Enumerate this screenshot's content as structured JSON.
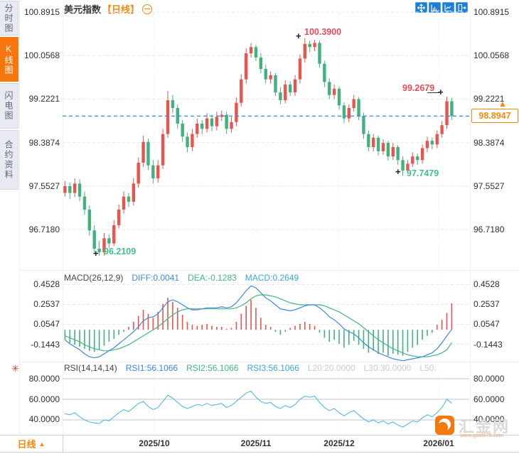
{
  "sidebar": {
    "tabs": [
      {
        "label": "分时图",
        "active": false
      },
      {
        "label": "K线图",
        "active": true
      },
      {
        "label": "闪电图",
        "active": false
      },
      {
        "label": "合约资料",
        "active": false
      }
    ]
  },
  "title": {
    "symbol": "美元指数",
    "period": "【日线】"
  },
  "toolbar": {
    "buttons": [
      "pan-icon",
      "axis-scale-icon",
      "axis-trend-icon",
      "exit-icon"
    ]
  },
  "price_axis": {
    "labels": [
      "100.8915",
      "100.0568",
      "99.2221",
      "98.3874",
      "97.5527",
      "96.7180"
    ],
    "values": [
      100.8915,
      100.0568,
      99.2221,
      98.3874,
      97.5527,
      96.718
    ]
  },
  "current_price": {
    "value": "98.8947",
    "arrow": "▲"
  },
  "annotations": {
    "high": "100.3900",
    "swing_high": "99.2679",
    "low": "96.2109",
    "swing_low": "97.7479",
    "marker": "+"
  },
  "macd": {
    "name": "MACD(26,12,9)",
    "diff": "DIFF:0.0041",
    "dea": "DEA:-0.1283",
    "macd": "MACD:0.2649",
    "axis_labels": [
      "0.4528",
      "0.2537",
      "0.0547",
      "-0.1443"
    ]
  },
  "rsi": {
    "name": "RSI(14,14,14)",
    "rsi1": "RSI1:56.1066",
    "rsi2": "RSI2:56.1066",
    "rsi3": "RSI3:56.1066",
    "l20": "L20:20.0000",
    "l30": "L30:30.0000",
    "l50": "L50:",
    "axis_labels": [
      "80.0000",
      "60.0000",
      "40.0000"
    ]
  },
  "x_axis": {
    "labels": [
      "2025/10",
      "2025/11",
      "2025/12",
      "2026/01"
    ],
    "positions": [
      217,
      360,
      477,
      617
    ]
  },
  "bottom_bar": {
    "period": "日线",
    "arrow": "▲"
  },
  "watermark": {
    "name": "汇金网",
    "url": "www.gold678.com"
  },
  "colors": {
    "up": "#e9544e",
    "down": "#41b27d",
    "accent_orange": "#f7870f",
    "dashed_line": "#2f8be8",
    "diff_line": "#3d87e0",
    "dea_line": "#3fb586",
    "macd_label": "#3aa6e0",
    "rsi_line": "#56b7e3",
    "annotation_red": "#e94b56",
    "annotation_green": "#3ec08f",
    "toolbar_blue": "#1b7ed8",
    "grid": "#e7e7ef",
    "level_line": "#c3c3cc"
  },
  "chart_data": [
    {
      "type": "candlestick",
      "title": "美元指数 日线",
      "y_ticks": [
        100.8915,
        100.0568,
        99.2221,
        98.3874,
        97.5527,
        96.718
      ],
      "ylim": [
        96.0,
        100.95
      ],
      "current_price": 98.8947,
      "marked_high": 100.39,
      "marked_swing_high": 99.2679,
      "marked_low": 96.2109,
      "marked_swing_low": 97.7479,
      "x_tick_labels": [
        "2025/10",
        "2025/11",
        "2025/12",
        "2026/01"
      ],
      "ohlc": [
        [
          97.42,
          97.65,
          97.35,
          97.55
        ],
        [
          97.55,
          97.62,
          97.3,
          97.42
        ],
        [
          97.42,
          97.7,
          97.34,
          97.6
        ],
        [
          97.6,
          97.68,
          97.26,
          97.35
        ],
        [
          97.35,
          97.45,
          97.0,
          97.1
        ],
        [
          97.1,
          97.18,
          96.6,
          96.7
        ],
        [
          96.7,
          96.8,
          96.26,
          96.35
        ],
        [
          96.35,
          96.5,
          96.2109,
          96.28
        ],
        [
          96.28,
          96.65,
          96.22,
          96.55
        ],
        [
          96.55,
          96.62,
          96.36,
          96.45
        ],
        [
          96.45,
          96.9,
          96.4,
          96.8
        ],
        [
          96.8,
          97.2,
          96.74,
          97.1
        ],
        [
          97.1,
          97.45,
          97.02,
          97.35
        ],
        [
          97.35,
          97.42,
          97.15,
          97.25
        ],
        [
          97.25,
          97.7,
          97.18,
          97.6
        ],
        [
          97.6,
          98.1,
          97.52,
          98.0
        ],
        [
          98.0,
          98.52,
          97.92,
          98.4
        ],
        [
          98.4,
          98.46,
          97.86,
          97.95
        ],
        [
          97.95,
          98.05,
          97.6,
          97.7
        ],
        [
          97.7,
          98.05,
          97.62,
          97.95
        ],
        [
          97.95,
          98.65,
          97.88,
          98.55
        ],
        [
          98.55,
          99.38,
          98.48,
          99.2
        ],
        [
          99.2,
          99.3,
          98.95,
          99.05
        ],
        [
          99.05,
          99.12,
          98.65,
          98.75
        ],
        [
          98.75,
          98.82,
          98.4,
          98.5
        ],
        [
          98.5,
          98.58,
          98.2,
          98.3
        ],
        [
          98.3,
          98.65,
          98.22,
          98.55
        ],
        [
          98.55,
          98.85,
          98.48,
          98.75
        ],
        [
          98.75,
          98.82,
          98.55,
          98.65
        ],
        [
          98.65,
          98.95,
          98.58,
          98.85
        ],
        [
          98.85,
          98.92,
          98.6,
          98.7
        ],
        [
          98.7,
          98.98,
          98.62,
          98.88
        ],
        [
          98.88,
          99.0,
          98.8,
          98.92
        ],
        [
          98.92,
          98.98,
          98.55,
          98.65
        ],
        [
          98.65,
          98.88,
          98.58,
          98.78
        ],
        [
          98.78,
          99.25,
          98.7,
          99.15
        ],
        [
          99.15,
          99.7,
          99.08,
          99.6
        ],
        [
          99.6,
          100.2,
          99.52,
          100.1
        ],
        [
          100.1,
          100.3,
          100.02,
          100.22
        ],
        [
          100.22,
          100.26,
          99.95,
          100.02
        ],
        [
          100.02,
          100.1,
          99.72,
          99.8
        ],
        [
          99.8,
          99.88,
          99.52,
          99.6
        ],
        [
          99.6,
          99.75,
          99.52,
          99.68
        ],
        [
          99.68,
          99.72,
          99.28,
          99.35
        ],
        [
          99.35,
          99.45,
          99.12,
          99.2
        ],
        [
          99.2,
          99.58,
          99.14,
          99.5
        ],
        [
          99.5,
          99.56,
          99.28,
          99.35
        ],
        [
          99.35,
          99.68,
          99.28,
          99.6
        ],
        [
          99.6,
          100.08,
          99.52,
          100.0
        ],
        [
          100.0,
          100.39,
          99.92,
          100.28
        ],
        [
          100.28,
          100.34,
          100.12,
          100.22
        ],
        [
          100.22,
          100.36,
          100.14,
          100.3
        ],
        [
          100.3,
          100.34,
          99.82,
          99.9
        ],
        [
          99.9,
          99.96,
          99.45,
          99.55
        ],
        [
          99.55,
          99.62,
          99.22,
          99.3
        ],
        [
          99.3,
          99.5,
          99.22,
          99.42
        ],
        [
          99.42,
          99.46,
          99.02,
          99.1
        ],
        [
          99.1,
          99.16,
          98.76,
          98.85
        ],
        [
          98.85,
          99.12,
          98.78,
          99.05
        ],
        [
          99.05,
          99.3,
          98.98,
          99.22
        ],
        [
          99.22,
          99.26,
          98.82,
          98.9
        ],
        [
          98.9,
          98.96,
          98.46,
          98.55
        ],
        [
          98.55,
          98.62,
          98.22,
          98.3
        ],
        [
          98.3,
          98.55,
          98.22,
          98.48
        ],
        [
          98.48,
          98.52,
          98.14,
          98.22
        ],
        [
          98.22,
          98.45,
          98.15,
          98.38
        ],
        [
          98.38,
          98.42,
          98.04,
          98.12
        ],
        [
          98.12,
          98.38,
          98.05,
          98.3
        ],
        [
          98.3,
          98.34,
          97.96,
          98.05
        ],
        [
          98.05,
          98.12,
          97.7479,
          97.85
        ],
        [
          97.85,
          98.05,
          97.8,
          97.98
        ],
        [
          97.98,
          98.2,
          97.92,
          98.12
        ],
        [
          98.12,
          98.18,
          97.96,
          98.05
        ],
        [
          98.05,
          98.35,
          97.98,
          98.28
        ],
        [
          98.28,
          98.5,
          98.2,
          98.42
        ],
        [
          98.42,
          98.48,
          98.26,
          98.35
        ],
        [
          98.35,
          98.62,
          98.28,
          98.55
        ],
        [
          98.55,
          98.8,
          98.48,
          98.72
        ],
        [
          98.72,
          99.2679,
          98.65,
          99.18
        ],
        [
          99.18,
          99.24,
          98.82,
          98.8947
        ]
      ]
    },
    {
      "type": "macd",
      "params": [
        26,
        12,
        9
      ],
      "last_diff": 0.0041,
      "last_dea": -0.1283,
      "last_macd": 0.2649,
      "y_ticks": [
        0.4528,
        0.2537,
        0.0547,
        -0.1443
      ],
      "diff": [
        -0.1,
        -0.14,
        -0.17,
        -0.2,
        -0.24,
        -0.27,
        -0.28,
        -0.27,
        -0.24,
        -0.21,
        -0.18,
        -0.14,
        -0.1,
        -0.06,
        -0.02,
        0.03,
        0.09,
        0.12,
        0.13,
        0.16,
        0.22,
        0.28,
        0.3,
        0.28,
        0.25,
        0.22,
        0.2,
        0.2,
        0.21,
        0.22,
        0.22,
        0.22,
        0.23,
        0.22,
        0.23,
        0.27,
        0.33,
        0.39,
        0.44,
        0.42,
        0.37,
        0.32,
        0.29,
        0.25,
        0.21,
        0.2,
        0.19,
        0.2,
        0.22,
        0.24,
        0.25,
        0.25,
        0.22,
        0.18,
        0.13,
        0.1,
        0.06,
        0.01,
        -0.02,
        -0.04,
        -0.08,
        -0.13,
        -0.17,
        -0.2,
        -0.23,
        -0.25,
        -0.27,
        -0.29,
        -0.3,
        -0.31,
        -0.3,
        -0.29,
        -0.28,
        -0.27,
        -0.25,
        -0.23,
        -0.19,
        -0.13,
        -0.06,
        0.0041
      ],
      "dea": [
        -0.06,
        -0.08,
        -0.1,
        -0.12,
        -0.15,
        -0.17,
        -0.19,
        -0.2,
        -0.21,
        -0.21,
        -0.2,
        -0.19,
        -0.17,
        -0.15,
        -0.12,
        -0.09,
        -0.06,
        -0.03,
        0.0,
        0.03,
        0.07,
        0.11,
        0.15,
        0.18,
        0.2,
        0.21,
        0.21,
        0.21,
        0.21,
        0.21,
        0.21,
        0.21,
        0.21,
        0.21,
        0.21,
        0.22,
        0.24,
        0.27,
        0.31,
        0.34,
        0.35,
        0.35,
        0.34,
        0.33,
        0.31,
        0.29,
        0.27,
        0.26,
        0.25,
        0.25,
        0.25,
        0.25,
        0.25,
        0.24,
        0.22,
        0.2,
        0.18,
        0.15,
        0.12,
        0.09,
        0.06,
        0.02,
        -0.02,
        -0.06,
        -0.1,
        -0.13,
        -0.16,
        -0.19,
        -0.21,
        -0.23,
        -0.25,
        -0.26,
        -0.27,
        -0.27,
        -0.27,
        -0.26,
        -0.25,
        -0.23,
        -0.2,
        -0.1283
      ],
      "hist": [
        -0.1,
        -0.13,
        -0.15,
        -0.17,
        -0.19,
        -0.21,
        -0.22,
        -0.2,
        -0.16,
        -0.12,
        -0.09,
        -0.05,
        -0.02,
        0.03,
        0.08,
        0.14,
        0.2,
        0.16,
        0.12,
        0.18,
        0.26,
        0.32,
        0.28,
        0.22,
        0.15,
        0.08,
        0.05,
        0.04,
        0.05,
        0.06,
        0.04,
        0.03,
        0.03,
        0.01,
        0.02,
        0.08,
        0.16,
        0.24,
        0.3,
        0.22,
        0.12,
        0.05,
        0.03,
        -0.02,
        -0.05,
        -0.02,
        0.02,
        0.04,
        0.06,
        0.08,
        0.06,
        0.04,
        -0.03,
        -0.08,
        -0.12,
        -0.1,
        -0.14,
        -0.18,
        -0.15,
        -0.11,
        -0.15,
        -0.19,
        -0.23,
        -0.21,
        -0.24,
        -0.23,
        -0.26,
        -0.24,
        -0.25,
        -0.26,
        -0.22,
        -0.18,
        -0.15,
        -0.1,
        -0.06,
        -0.03,
        0.05,
        0.1,
        0.17,
        0.2649
      ]
    },
    {
      "type": "line",
      "name": "RSI(14,14,14)",
      "levels": [
        80,
        60,
        40
      ],
      "last": 56.1066,
      "values": [
        46,
        45,
        47,
        43,
        40,
        38,
        37,
        36.5,
        40,
        39,
        43,
        47,
        50,
        48,
        52,
        56,
        58,
        53,
        50,
        52,
        58,
        64,
        61,
        57,
        53,
        51,
        53,
        55,
        54,
        56,
        54,
        55,
        56,
        52,
        54,
        58,
        62,
        66,
        68,
        62,
        58,
        56,
        57,
        53,
        51,
        54,
        52,
        55,
        60,
        63,
        62,
        63,
        57,
        52,
        49,
        51,
        47,
        44,
        47,
        49,
        45,
        41,
        38,
        40,
        37,
        39,
        36,
        38,
        35,
        33,
        36,
        39,
        38,
        42,
        45,
        43,
        47,
        52,
        60,
        56.1066
      ]
    }
  ]
}
